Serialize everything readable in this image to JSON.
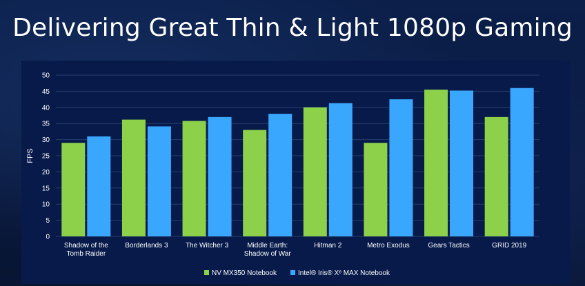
{
  "slide": {
    "title": "Delivering Great Thin & Light 1080p Gaming"
  },
  "colors": {
    "series_a": "#8dd14b",
    "series_b": "#3aa7ff",
    "gridline": "#2a3f6e",
    "axis_text": "#ffffff"
  },
  "chart_data": {
    "type": "bar",
    "title": "",
    "xlabel": "",
    "ylabel": "FPS",
    "ylim": [
      0,
      50
    ],
    "yticks": [
      0,
      5,
      10,
      15,
      20,
      25,
      30,
      35,
      40,
      45,
      50
    ],
    "grid": true,
    "legend_position": "bottom-center",
    "categories": [
      [
        "Shadow of the",
        "Tomb Raider"
      ],
      [
        "Borderlands 3"
      ],
      [
        "The Witcher 3"
      ],
      [
        "Middle Earth:",
        "Shadow of War"
      ],
      [
        "Hitman 2"
      ],
      [
        "Metro Exodus"
      ],
      [
        "Gears Tactics"
      ],
      [
        "GRID 2019"
      ]
    ],
    "series": [
      {
        "name": "NV MX350 Notebook",
        "color": "#8dd14b",
        "values": [
          29,
          36.2,
          35.8,
          33,
          40,
          29,
          45.5,
          37
        ]
      },
      {
        "name": "Intel® Iris® Xᵉ MAX Notebook",
        "color": "#3aa7ff",
        "values": [
          31,
          34.1,
          37,
          38,
          41.3,
          42.5,
          45.2,
          46
        ]
      }
    ]
  }
}
